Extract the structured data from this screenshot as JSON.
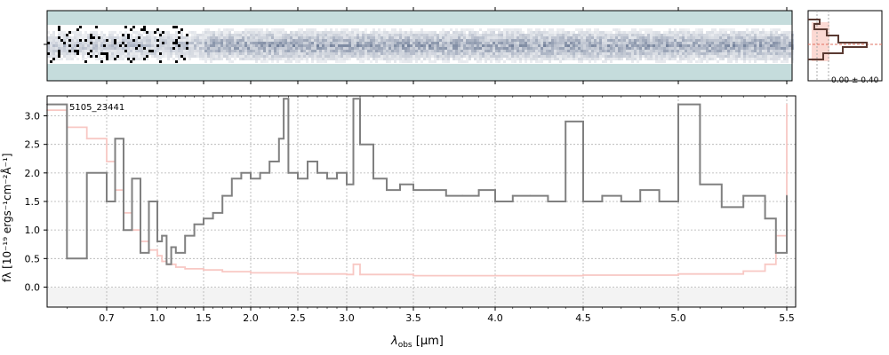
{
  "chart_data": {
    "type": "line",
    "object_id": "5105_23441",
    "xlabel": "λobs [μm]",
    "xlabel_sub": "obs",
    "xlabel_unit": " [μm]",
    "ylabel": "fλ [10⁻¹⁹ ergs⁻¹cm⁻²Å⁻¹]",
    "xlim": [
      0.55,
      5.52
    ],
    "ylim": [
      -0.35,
      3.35
    ],
    "x_scale": "nonlinear (spectral bin space)",
    "grid": true,
    "xticks": [
      0.7,
      1.0,
      1.5,
      2.0,
      2.5,
      3.0,
      3.5,
      4.0,
      4.5,
      5.0,
      5.5
    ],
    "xtick_labels": [
      "0.7",
      "1.0",
      "1.5",
      "2.0",
      "2.5",
      "3.0",
      "3.5",
      "4.0",
      "4.5",
      "5.0",
      "5.5"
    ],
    "yticks": [
      0.0,
      0.5,
      1.0,
      1.5,
      2.0,
      2.5,
      3.0
    ],
    "ytick_labels": [
      "0.0",
      "0.5",
      "1.0",
      "1.5",
      "2.0",
      "2.5",
      "3.0"
    ],
    "series": [
      {
        "role": "flux",
        "color": "#808080",
        "x": [
          0.55,
          0.6,
          0.65,
          0.7,
          0.75,
          0.8,
          0.85,
          0.9,
          0.95,
          1.0,
          1.05,
          1.1,
          1.15,
          1.2,
          1.3,
          1.4,
          1.5,
          1.6,
          1.7,
          1.8,
          1.9,
          2.0,
          2.1,
          2.2,
          2.3,
          2.35,
          2.4,
          2.5,
          2.6,
          2.7,
          2.8,
          2.9,
          3.0,
          3.05,
          3.1,
          3.2,
          3.3,
          3.4,
          3.5,
          3.6,
          3.7,
          3.8,
          3.9,
          4.0,
          4.1,
          4.2,
          4.3,
          4.4,
          4.5,
          4.6,
          4.7,
          4.8,
          4.9,
          5.0,
          5.1,
          5.2,
          5.3,
          5.4,
          5.45,
          5.5
        ],
        "y": [
          3.2,
          0.5,
          2.0,
          1.5,
          2.6,
          1.0,
          1.9,
          0.6,
          1.5,
          0.8,
          0.9,
          0.4,
          0.7,
          0.6,
          0.9,
          1.1,
          1.2,
          1.3,
          1.6,
          1.9,
          2.0,
          1.9,
          2.0,
          2.2,
          2.6,
          3.3,
          2.0,
          1.9,
          2.2,
          2.0,
          1.9,
          2.0,
          1.8,
          3.3,
          2.5,
          1.9,
          1.7,
          1.8,
          1.7,
          1.7,
          1.6,
          1.6,
          1.7,
          1.5,
          1.6,
          1.6,
          1.5,
          2.9,
          1.5,
          1.6,
          1.5,
          1.7,
          1.5,
          3.2,
          1.8,
          1.4,
          1.6,
          1.2,
          0.6,
          1.6
        ]
      },
      {
        "role": "uncertainty",
        "color": "#f8c8c4",
        "x": [
          0.55,
          0.6,
          0.65,
          0.7,
          0.75,
          0.8,
          0.85,
          0.9,
          0.95,
          1.0,
          1.05,
          1.1,
          1.2,
          1.3,
          1.5,
          1.7,
          2.0,
          2.5,
          3.0,
          3.05,
          3.1,
          3.5,
          4.0,
          4.5,
          5.0,
          5.3,
          5.4,
          5.45,
          5.5
        ],
        "y": [
          3.1,
          2.8,
          2.6,
          2.2,
          1.7,
          1.3,
          1.0,
          0.8,
          0.65,
          0.55,
          0.45,
          0.4,
          0.35,
          0.32,
          0.3,
          0.27,
          0.25,
          0.23,
          0.22,
          0.4,
          0.22,
          0.2,
          0.2,
          0.21,
          0.23,
          0.28,
          0.4,
          0.9,
          3.2
        ]
      }
    ]
  },
  "side_panel": {
    "label": "0.00 ± 0.40"
  }
}
